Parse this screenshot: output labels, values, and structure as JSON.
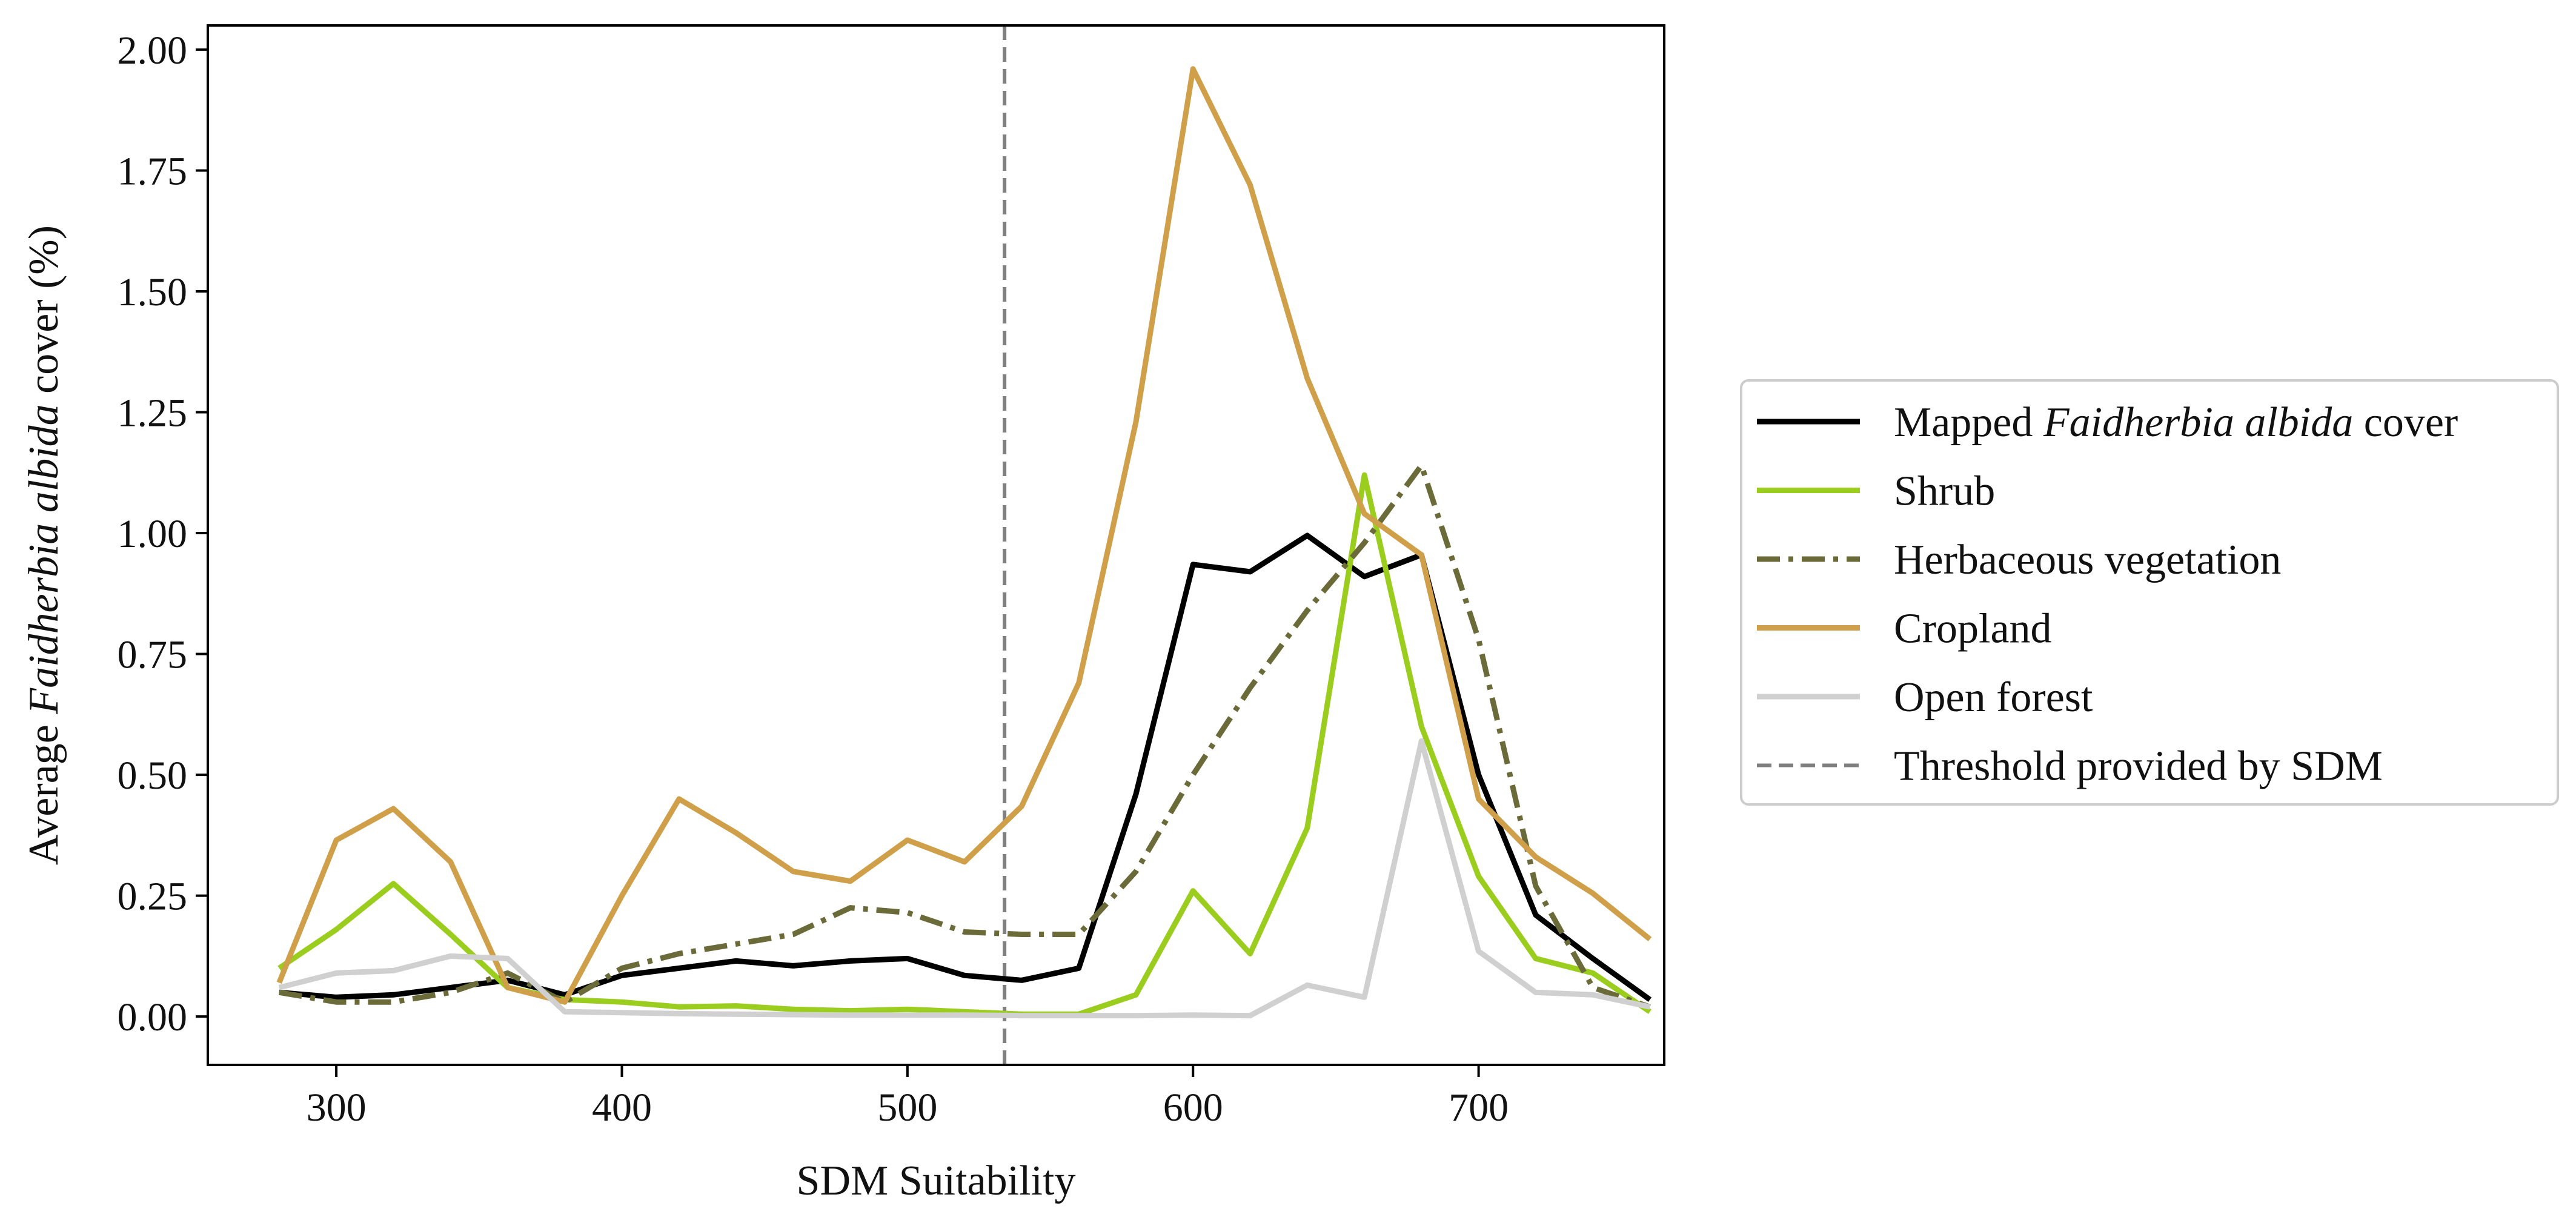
{
  "chart_data": {
    "type": "line",
    "xlabel": "SDM Suitability",
    "ylabel_parts": [
      "Average ",
      "Faidherbia albida",
      " cover (%)"
    ],
    "xlim": [
      255,
      765
    ],
    "ylim": [
      -0.1,
      2.05
    ],
    "x_ticks": [
      300,
      400,
      500,
      600,
      700
    ],
    "x_tick_labels": [
      "300",
      "400",
      "500",
      "600",
      "700"
    ],
    "y_ticks": [
      0.0,
      0.25,
      0.5,
      0.75,
      1.0,
      1.25,
      1.5,
      1.75,
      2.0
    ],
    "y_tick_labels": [
      "0.00",
      "0.25",
      "0.50",
      "0.75",
      "1.00",
      "1.25",
      "1.50",
      "1.75",
      "2.00"
    ],
    "grid": false,
    "legend_position": "right, outside plot",
    "x": [
      280,
      300,
      320,
      340,
      360,
      380,
      400,
      420,
      440,
      460,
      480,
      500,
      520,
      540,
      560,
      580,
      600,
      620,
      640,
      660,
      680,
      700,
      720,
      740,
      760
    ],
    "series": [
      {
        "name": "Mapped Faidherbia albida cover",
        "legend_parts": [
          "Mapped ",
          "Faidherbia albida",
          " cover"
        ],
        "color": "#000000",
        "dash": "solid",
        "values": [
          0.05,
          0.04,
          0.045,
          0.06,
          0.075,
          0.045,
          0.085,
          0.1,
          0.115,
          0.105,
          0.115,
          0.12,
          0.085,
          0.075,
          0.1,
          0.46,
          0.935,
          0.92,
          0.995,
          0.91,
          0.955,
          0.5,
          0.21,
          0.12,
          0.035
        ]
      },
      {
        "name": "Shrub",
        "legend_parts": [
          "Shrub"
        ],
        "color": "#9acd1e",
        "dash": "solid",
        "values": [
          0.1,
          0.18,
          0.275,
          0.17,
          0.06,
          0.035,
          0.03,
          0.02,
          0.022,
          0.015,
          0.012,
          0.015,
          0.01,
          0.005,
          0.005,
          0.045,
          0.26,
          0.13,
          0.39,
          1.12,
          0.6,
          0.29,
          0.12,
          0.09,
          0.01
        ]
      },
      {
        "name": "Herbaceous vegetation",
        "legend_parts": [
          "Herbaceous vegetation"
        ],
        "color": "#6b6b3a",
        "dash": "dashdot",
        "values": [
          0.05,
          0.03,
          0.03,
          0.05,
          0.09,
          0.03,
          0.1,
          0.13,
          0.15,
          0.17,
          0.225,
          0.215,
          0.175,
          0.17,
          0.17,
          0.3,
          0.5,
          0.68,
          0.84,
          0.98,
          1.14,
          0.78,
          0.27,
          0.06,
          0.02
        ]
      },
      {
        "name": "Cropland",
        "legend_parts": [
          "Cropland"
        ],
        "color": "#cf9f4a",
        "dash": "solid",
        "values": [
          0.07,
          0.365,
          0.43,
          0.32,
          0.06,
          0.03,
          0.25,
          0.45,
          0.38,
          0.3,
          0.28,
          0.365,
          0.32,
          0.435,
          0.69,
          1.23,
          1.96,
          1.72,
          1.32,
          1.04,
          0.955,
          0.45,
          0.33,
          0.255,
          0.16
        ]
      },
      {
        "name": "Open forest",
        "legend_parts": [
          "Open forest"
        ],
        "color": "#d0d0d0",
        "dash": "solid",
        "values": [
          0.06,
          0.09,
          0.095,
          0.125,
          0.12,
          0.01,
          0.008,
          0.006,
          0.005,
          0.004,
          0.003,
          0.003,
          0.003,
          0.002,
          0.002,
          0.002,
          0.003,
          0.002,
          0.065,
          0.04,
          0.57,
          0.135,
          0.05,
          0.045,
          0.02
        ]
      }
    ],
    "threshold": {
      "name": "Threshold provided by SDM",
      "legend_parts": [
        "Threshold provided by SDM"
      ],
      "x": 534,
      "color": "#808080",
      "dash": "dashed"
    }
  }
}
